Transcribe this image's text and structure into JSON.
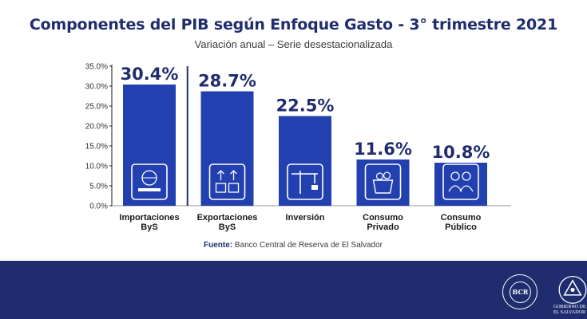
{
  "chart_data": {
    "type": "bar",
    "title": "Componentes del PIB según Enfoque Gasto - 3° trimestre 2021",
    "subtitle": "Variación anual – Serie desestacionalizada",
    "categories": [
      [
        "Importaciones",
        "ByS"
      ],
      [
        "Exportaciones",
        "ByS"
      ],
      [
        "Inversión"
      ],
      [
        "Consumo",
        "Privado"
      ],
      [
        "Consumo",
        "Público"
      ]
    ],
    "values": [
      30.4,
      28.7,
      22.5,
      11.6,
      10.8
    ],
    "value_labels": [
      "30.4%",
      "28.7%",
      "22.5%",
      "11.6%",
      "10.8%"
    ],
    "icons": [
      "laptop-globe-icon",
      "boxes-arrows-icon",
      "crane-icon",
      "shopping-bag-icon",
      "people-icon"
    ],
    "yticks": [
      "0.0%",
      "5.0%",
      "10.0%",
      "15.0%",
      "20.0%",
      "25.0%",
      "30.0%",
      "35.0%"
    ],
    "ylim": [
      0,
      35
    ],
    "xlabel": "",
    "ylabel": "",
    "grid": false,
    "legend": "none",
    "bar_color": "#2340b0",
    "separator_after_index": 0
  },
  "source": {
    "label": "Fuente:",
    "text": "Banco Central de Reserva de El Salvador"
  },
  "footer": {
    "bcr_seal_text": "BCR",
    "gov_line1": "GOBIERNO DE",
    "gov_line2": "EL SALVADOR",
    "color": "#1f2d6e"
  }
}
